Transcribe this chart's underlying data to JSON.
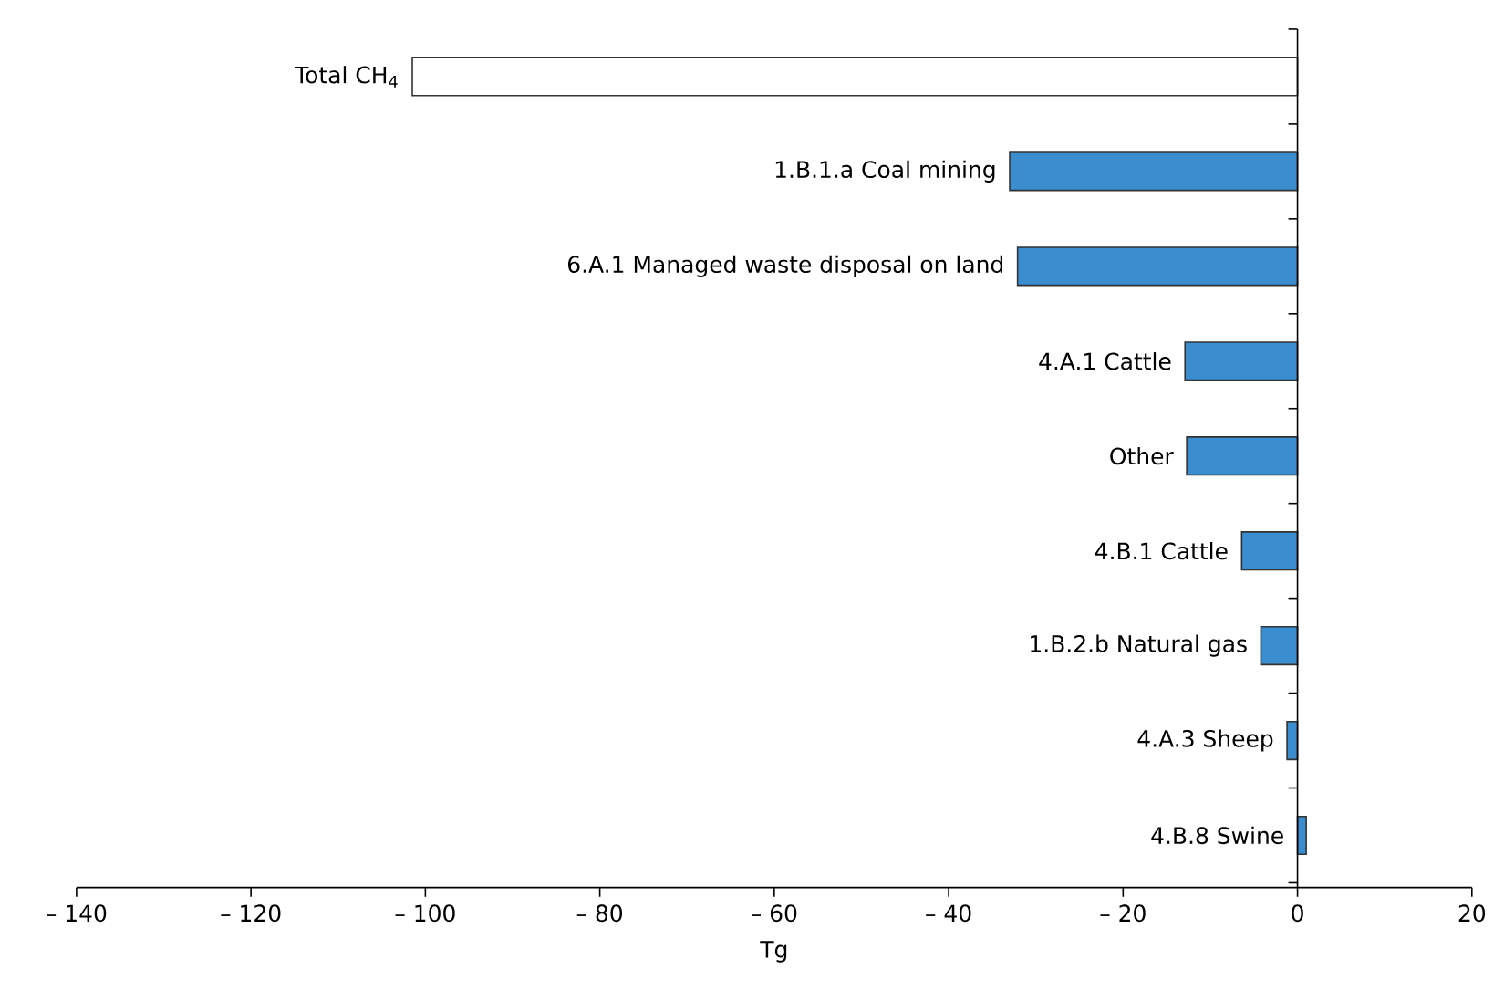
{
  "chart_data": {
    "type": "bar",
    "orientation": "horizontal",
    "xlabel": "Tg",
    "categories": [
      "Total CH$_{4}$",
      "1.B.1.a Coal mining",
      "6.A.1 Managed waste disposal on land",
      "4.A.1 Cattle",
      "Other",
      "4.B.1 Cattle",
      "1.B.2.b Natural gas",
      "4.A.3 Sheep",
      "4.B.8 Swine"
    ],
    "values": [
      -101.5,
      -33.0,
      -32.1,
      -12.9,
      -12.7,
      -6.4,
      -4.2,
      -1.2,
      1.0
    ],
    "colors": [
      "#ffffff",
      "#3a8dcf",
      "#3a8dcf",
      "#3a8dcf",
      "#3a8dcf",
      "#3a8dcf",
      "#3a8dcf",
      "#3a8dcf",
      "#3a8dcf"
    ],
    "xlim": [
      -140,
      20
    ],
    "xticks": [
      {
        "value": -140,
        "label": "– 140"
      },
      {
        "value": -120,
        "label": "– 120"
      },
      {
        "value": -100,
        "label": "– 100"
      },
      {
        "value": -80,
        "label": "– 80"
      },
      {
        "value": -60,
        "label": "– 60"
      },
      {
        "value": -40,
        "label": "– 40"
      },
      {
        "value": -20,
        "label": "– 20"
      },
      0,
      20
    ]
  }
}
